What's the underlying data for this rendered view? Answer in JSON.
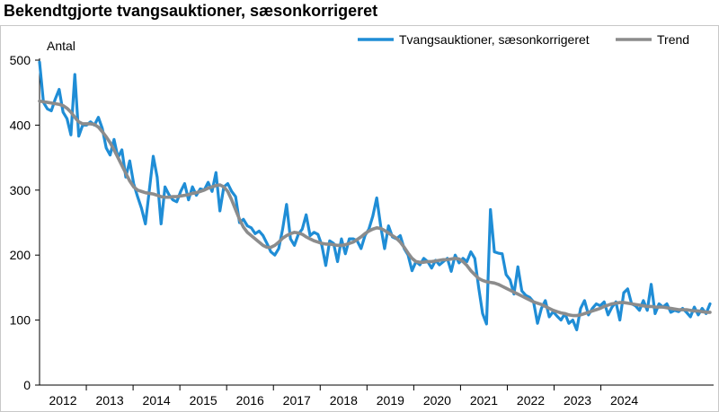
{
  "chart_data": {
    "type": "line",
    "title": "Bekendtgjorte tvangsauktioner, sæsonkorrigeret",
    "ylabel": "Antal",
    "xlabel": "",
    "ylim": [
      0,
      500
    ],
    "yticks": [
      "0",
      "100",
      "200",
      "300",
      "400",
      "500"
    ],
    "xticks": [
      "2012",
      "2013",
      "2014",
      "2015",
      "2016",
      "2017",
      "2018",
      "2019",
      "2020",
      "2021",
      "2022",
      "2023",
      "2024"
    ],
    "x_start": "2012-01",
    "x_end": "2024-12",
    "grid": false,
    "legend_position": "top-right",
    "colors": {
      "series1": "#1f8dd6",
      "trend": "#8c8c8c",
      "axis": "#000000",
      "frame": "#c8c8c8"
    },
    "series": [
      {
        "name": "Tvangsauktioner, sæsonkorrigeret",
        "values": [
          497,
          435,
          425,
          422,
          440,
          455,
          420,
          410,
          385,
          478,
          383,
          400,
          400,
          405,
          400,
          412,
          395,
          365,
          354,
          378,
          350,
          362,
          320,
          345,
          310,
          290,
          272,
          248,
          300,
          352,
          320,
          248,
          305,
          293,
          285,
          282,
          298,
          310,
          285,
          305,
          292,
          302,
          300,
          312,
          298,
          327,
          268,
          305,
          310,
          298,
          290,
          250,
          255,
          245,
          242,
          233,
          237,
          230,
          218,
          205,
          200,
          210,
          240,
          278,
          225,
          215,
          232,
          240,
          262,
          230,
          235,
          232,
          215,
          184,
          222,
          218,
          190,
          225,
          202,
          225,
          225,
          222,
          210,
          230,
          240,
          260,
          288,
          245,
          210,
          245,
          228,
          225,
          230,
          210,
          200,
          176,
          190,
          185,
          195,
          190,
          180,
          192,
          185,
          190,
          195,
          175,
          200,
          188,
          195,
          190,
          205,
          195,
          150,
          110,
          94,
          270,
          205,
          203,
          202,
          170,
          162,
          140,
          182,
          145,
          138,
          135,
          128,
          95,
          118,
          130,
          105,
          113,
          106,
          100,
          110,
          95,
          100,
          85,
          118,
          130,
          108,
          118,
          125,
          122,
          128,
          108,
          120,
          128,
          100,
          142,
          148,
          125,
          122,
          115,
          130,
          115,
          155,
          110,
          125,
          120,
          125,
          112,
          115,
          113,
          118,
          112,
          105,
          120,
          108,
          118,
          110,
          125
        ]
      },
      {
        "name": "Trend",
        "values": [
          437,
          436,
          435,
          434,
          433,
          432,
          430,
          426,
          420,
          412,
          405,
          402,
          402,
          402,
          401,
          397,
          390,
          382,
          373,
          362,
          350,
          338,
          326,
          314,
          305,
          300,
          298,
          296,
          295,
          294,
          292,
          290,
          289,
          289,
          290,
          290,
          291,
          292,
          293,
          295,
          296,
          298,
          300,
          303,
          305,
          307,
          308,
          305,
          298,
          285,
          270,
          255,
          243,
          235,
          230,
          225,
          220,
          215,
          212,
          212,
          215,
          220,
          226,
          230,
          233,
          235,
          234,
          232,
          228,
          225,
          222,
          220,
          218,
          217,
          217,
          216,
          215,
          215,
          216,
          218,
          220,
          224,
          228,
          233,
          237,
          240,
          242,
          241,
          238,
          234,
          230,
          226,
          220,
          212,
          203,
          195,
          190,
          189,
          189,
          190,
          190,
          191,
          192,
          193,
          193,
          194,
          195,
          194,
          190,
          184,
          176,
          170,
          164,
          161,
          159,
          158,
          157,
          155,
          152,
          149,
          146,
          143,
          140,
          137,
          134,
          131,
          128,
          126,
          124,
          121,
          118,
          115,
          113,
          111,
          110,
          108,
          107,
          107,
          108,
          110,
          112,
          114,
          116,
          118,
          121,
          123,
          125,
          126,
          127,
          127,
          126,
          125,
          124,
          123,
          122,
          121,
          121,
          120,
          120,
          120,
          119,
          118,
          117,
          116,
          116,
          116,
          115,
          114,
          114,
          113,
          112,
          112
        ]
      }
    ]
  }
}
